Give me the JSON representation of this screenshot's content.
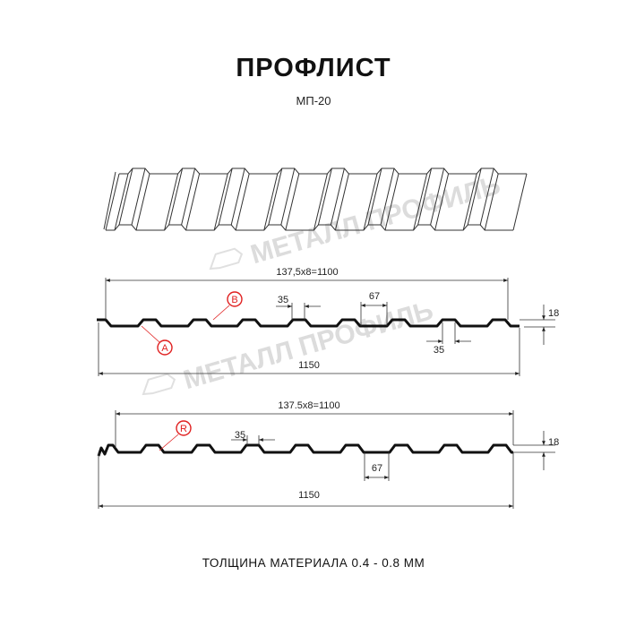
{
  "header": {
    "title": "ПРОФЛИСТ",
    "subtitle": "МП-20"
  },
  "watermark": {
    "text": "МЕТАЛЛ ПРОФИЛЬ"
  },
  "profile_top": {
    "pitch_label": "137,5x8=1100",
    "width_label": "1150",
    "rib_top_label": "35",
    "bottom_flat_label": "67",
    "rib_bottom_label": "35",
    "height_label": "18",
    "marker_a": "A",
    "marker_b": "B"
  },
  "profile_bottom": {
    "pitch_label": "137.5x8=1100",
    "width_label": "1150",
    "rib_top_label": "35",
    "bottom_flat_label": "67",
    "height_label": "18",
    "marker_r": "R"
  },
  "colors": {
    "line": "#111111",
    "marker": "#e02020",
    "watermark": "#e3e3e3"
  },
  "footer": {
    "thickness": "ТОЛЩИНА МАТЕРИАЛА 0.4 - 0.8 ММ"
  }
}
